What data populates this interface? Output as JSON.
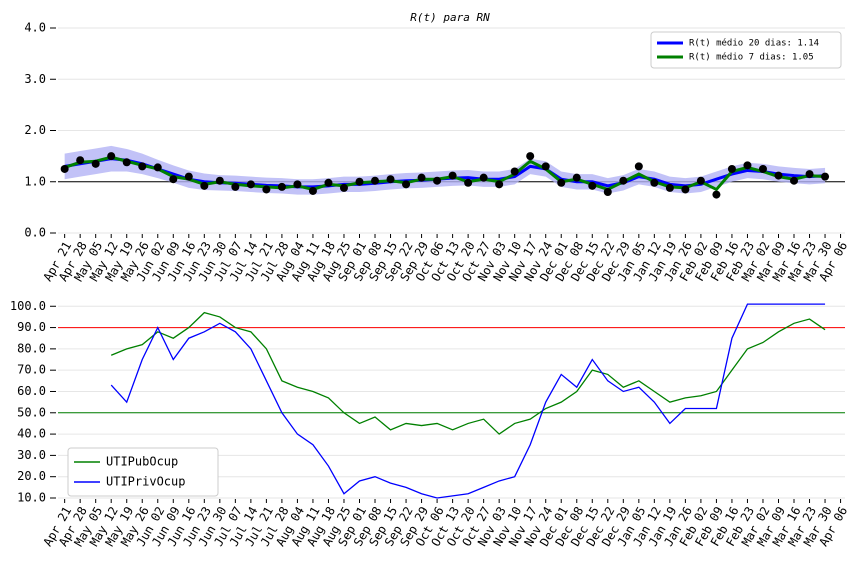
{
  "chart_data": [
    {
      "type": "line",
      "title": "R(t) para RN",
      "xlim": [
        -3,
        352
      ],
      "ylim": [
        0,
        4
      ],
      "yticks": [
        {
          "value": 0,
          "label": "0.0"
        },
        {
          "value": 1,
          "label": "1.0"
        },
        {
          "value": 2,
          "label": "2.0"
        },
        {
          "value": 3,
          "label": "3.0"
        },
        {
          "value": 4,
          "label": "4.0"
        }
      ],
      "xticks": [
        {
          "value": 0,
          "label": "Apr 21"
        },
        {
          "value": 7,
          "label": "Apr 28"
        },
        {
          "value": 14,
          "label": "May 05"
        },
        {
          "value": 21,
          "label": "May 12"
        },
        {
          "value": 28,
          "label": "May 19"
        },
        {
          "value": 35,
          "label": "May 26"
        },
        {
          "value": 42,
          "label": "Jun 02"
        },
        {
          "value": 49,
          "label": "Jun 09"
        },
        {
          "value": 56,
          "label": "Jun 16"
        },
        {
          "value": 63,
          "label": "Jun 23"
        },
        {
          "value": 70,
          "label": "Jun 30"
        },
        {
          "value": 77,
          "label": "Jul 07"
        },
        {
          "value": 84,
          "label": "Jul 14"
        },
        {
          "value": 91,
          "label": "Jul 21"
        },
        {
          "value": 98,
          "label": "Jul 28"
        },
        {
          "value": 105,
          "label": "Aug 04"
        },
        {
          "value": 112,
          "label": "Aug 11"
        },
        {
          "value": 119,
          "label": "Aug 18"
        },
        {
          "value": 126,
          "label": "Aug 25"
        },
        {
          "value": 133,
          "label": "Sep 01"
        },
        {
          "value": 140,
          "label": "Sep 08"
        },
        {
          "value": 147,
          "label": "Sep 15"
        },
        {
          "value": 154,
          "label": "Sep 22"
        },
        {
          "value": 161,
          "label": "Sep 29"
        },
        {
          "value": 168,
          "label": "Oct 06"
        },
        {
          "value": 175,
          "label": "Oct 13"
        },
        {
          "value": 182,
          "label": "Oct 20"
        },
        {
          "value": 189,
          "label": "Oct 27"
        },
        {
          "value": 196,
          "label": "Nov 03"
        },
        {
          "value": 203,
          "label": "Nov 10"
        },
        {
          "value": 210,
          "label": "Nov 17"
        },
        {
          "value": 217,
          "label": "Nov 24"
        },
        {
          "value": 224,
          "label": "Dec 01"
        },
        {
          "value": 231,
          "label": "Dec 08"
        },
        {
          "value": 238,
          "label": "Dec 15"
        },
        {
          "value": 245,
          "label": "Dec 22"
        },
        {
          "value": 252,
          "label": "Dec 29"
        },
        {
          "value": 259,
          "label": "Jan 05"
        },
        {
          "value": 266,
          "label": "Jan 12"
        },
        {
          "value": 273,
          "label": "Jan 19"
        },
        {
          "value": 280,
          "label": "Jan 26"
        },
        {
          "value": 287,
          "label": "Feb 02"
        },
        {
          "value": 294,
          "label": "Feb 09"
        },
        {
          "value": 301,
          "label": "Feb 16"
        },
        {
          "value": 308,
          "label": "Feb 23"
        },
        {
          "value": 315,
          "label": "Mar 02"
        },
        {
          "value": 322,
          "label": "Mar 09"
        },
        {
          "value": 329,
          "label": "Mar 16"
        },
        {
          "value": 336,
          "label": "Mar 23"
        },
        {
          "value": 343,
          "label": "Mar 30"
        },
        {
          "value": 350,
          "label": "Apr 06"
        }
      ],
      "grid": true,
      "legend": "upper right",
      "hlines": [
        {
          "value": 1,
          "color": "#000000"
        }
      ],
      "x": [
        0,
        7,
        14,
        21,
        28,
        35,
        42,
        49,
        56,
        63,
        70,
        77,
        84,
        91,
        98,
        105,
        112,
        119,
        126,
        133,
        140,
        147,
        154,
        161,
        168,
        175,
        182,
        189,
        196,
        203,
        210,
        217,
        224,
        231,
        238,
        245,
        252,
        259,
        266,
        273,
        280,
        287,
        294,
        301,
        308,
        315,
        322,
        329,
        336,
        343
      ],
      "band": {
        "color": "#b3b3f5",
        "low": [
          1.05,
          1.1,
          1.15,
          1.2,
          1.2,
          1.15,
          1.07,
          0.98,
          0.88,
          0.84,
          0.83,
          0.82,
          0.8,
          0.78,
          0.77,
          0.75,
          0.75,
          0.77,
          0.8,
          0.8,
          0.82,
          0.85,
          0.87,
          0.88,
          0.9,
          0.92,
          0.93,
          0.9,
          0.9,
          0.95,
          1.15,
          1.1,
          0.9,
          0.85,
          0.85,
          0.77,
          0.83,
          0.95,
          0.9,
          0.8,
          0.77,
          0.8,
          0.9,
          1.0,
          1.07,
          1.05,
          1.0,
          0.97,
          0.95,
          0.97
        ],
        "high": [
          1.55,
          1.6,
          1.65,
          1.7,
          1.64,
          1.55,
          1.43,
          1.32,
          1.22,
          1.16,
          1.13,
          1.12,
          1.1,
          1.08,
          1.07,
          1.05,
          1.05,
          1.07,
          1.1,
          1.1,
          1.12,
          1.15,
          1.17,
          1.18,
          1.2,
          1.22,
          1.23,
          1.2,
          1.2,
          1.25,
          1.45,
          1.4,
          1.2,
          1.15,
          1.15,
          1.07,
          1.13,
          1.25,
          1.2,
          1.1,
          1.07,
          1.1,
          1.2,
          1.3,
          1.37,
          1.35,
          1.3,
          1.27,
          1.25,
          1.27
        ]
      },
      "points": {
        "color": "#000000",
        "values": [
          1.25,
          1.42,
          1.35,
          1.5,
          1.38,
          1.3,
          1.28,
          1.05,
          1.1,
          0.92,
          1.02,
          0.9,
          0.95,
          0.85,
          0.9,
          0.95,
          0.82,
          0.98,
          0.88,
          1.0,
          1.02,
          1.05,
          0.95,
          1.08,
          1.02,
          1.12,
          0.98,
          1.08,
          0.95,
          1.2,
          1.5,
          1.3,
          0.98,
          1.08,
          0.92,
          0.8,
          1.02,
          1.3,
          0.98,
          0.88,
          0.85,
          1.02,
          0.75,
          1.25,
          1.32,
          1.25,
          1.12,
          1.02,
          1.15,
          1.1
        ]
      },
      "series": [
        {
          "name": "R(t) médio 20 dias: 1.14",
          "color": "#0000ff",
          "values": [
            1.3,
            1.35,
            1.4,
            1.45,
            1.42,
            1.35,
            1.25,
            1.15,
            1.05,
            1.0,
            0.98,
            0.97,
            0.95,
            0.93,
            0.92,
            0.9,
            0.9,
            0.92,
            0.95,
            0.95,
            0.97,
            1.0,
            1.02,
            1.03,
            1.05,
            1.07,
            1.08,
            1.05,
            1.05,
            1.1,
            1.3,
            1.25,
            1.05,
            1.0,
            1.0,
            0.92,
            0.98,
            1.1,
            1.05,
            0.95,
            0.92,
            0.95,
            1.05,
            1.15,
            1.22,
            1.2,
            1.15,
            1.12,
            1.1,
            1.12
          ]
        },
        {
          "name": "R(t) médio 7 dias: 1.05",
          "color": "#008000",
          "values": [
            1.28,
            1.38,
            1.4,
            1.48,
            1.4,
            1.32,
            1.25,
            1.1,
            1.05,
            0.95,
            1.0,
            0.95,
            0.92,
            0.9,
            0.88,
            0.92,
            0.85,
            0.95,
            0.92,
            0.98,
            1.0,
            1.02,
            0.98,
            1.05,
            1.05,
            1.1,
            1.0,
            1.05,
            1.0,
            1.15,
            1.4,
            1.25,
            1.0,
            1.05,
            0.95,
            0.85,
            1.0,
            1.15,
            1.0,
            0.9,
            0.88,
            1.0,
            0.85,
            1.2,
            1.28,
            1.2,
            1.1,
            1.05,
            1.12,
            1.1
          ]
        }
      ]
    },
    {
      "type": "line",
      "xlim": [
        -3,
        352
      ],
      "ylim": [
        10,
        102
      ],
      "yticks": [
        {
          "value": 10,
          "label": "10.0"
        },
        {
          "value": 20,
          "label": "20.0"
        },
        {
          "value": 30,
          "label": "30.0"
        },
        {
          "value": 40,
          "label": "40.0"
        },
        {
          "value": 50,
          "label": "50.0"
        },
        {
          "value": 60,
          "label": "60.0"
        },
        {
          "value": 70,
          "label": "70.0"
        },
        {
          "value": 80,
          "label": "80.0"
        },
        {
          "value": 90,
          "label": "90.0"
        },
        {
          "value": 100,
          "label": "100.0"
        }
      ],
      "xticks": [
        {
          "value": 0,
          "label": "Apr 21"
        },
        {
          "value": 7,
          "label": "Apr 28"
        },
        {
          "value": 14,
          "label": "May 05"
        },
        {
          "value": 21,
          "label": "May 12"
        },
        {
          "value": 28,
          "label": "May 19"
        },
        {
          "value": 35,
          "label": "May 26"
        },
        {
          "value": 42,
          "label": "Jun 02"
        },
        {
          "value": 49,
          "label": "Jun 09"
        },
        {
          "value": 56,
          "label": "Jun 16"
        },
        {
          "value": 63,
          "label": "Jun 23"
        },
        {
          "value": 70,
          "label": "Jun 30"
        },
        {
          "value": 77,
          "label": "Jul 07"
        },
        {
          "value": 84,
          "label": "Jul 14"
        },
        {
          "value": 91,
          "label": "Jul 21"
        },
        {
          "value": 98,
          "label": "Jul 28"
        },
        {
          "value": 105,
          "label": "Aug 04"
        },
        {
          "value": 112,
          "label": "Aug 11"
        },
        {
          "value": 119,
          "label": "Aug 18"
        },
        {
          "value": 126,
          "label": "Aug 25"
        },
        {
          "value": 133,
          "label": "Sep 01"
        },
        {
          "value": 140,
          "label": "Sep 08"
        },
        {
          "value": 147,
          "label": "Sep 15"
        },
        {
          "value": 154,
          "label": "Sep 22"
        },
        {
          "value": 161,
          "label": "Sep 29"
        },
        {
          "value": 168,
          "label": "Oct 06"
        },
        {
          "value": 175,
          "label": "Oct 13"
        },
        {
          "value": 182,
          "label": "Oct 20"
        },
        {
          "value": 189,
          "label": "Oct 27"
        },
        {
          "value": 196,
          "label": "Nov 03"
        },
        {
          "value": 203,
          "label": "Nov 10"
        },
        {
          "value": 210,
          "label": "Nov 17"
        },
        {
          "value": 217,
          "label": "Nov 24"
        },
        {
          "value": 224,
          "label": "Dec 01"
        },
        {
          "value": 231,
          "label": "Dec 08"
        },
        {
          "value": 238,
          "label": "Dec 15"
        },
        {
          "value": 245,
          "label": "Dec 22"
        },
        {
          "value": 252,
          "label": "Dec 29"
        },
        {
          "value": 259,
          "label": "Jan 05"
        },
        {
          "value": 266,
          "label": "Jan 12"
        },
        {
          "value": 273,
          "label": "Jan 19"
        },
        {
          "value": 280,
          "label": "Jan 26"
        },
        {
          "value": 287,
          "label": "Feb 02"
        },
        {
          "value": 294,
          "label": "Feb 09"
        },
        {
          "value": 301,
          "label": "Feb 16"
        },
        {
          "value": 308,
          "label": "Feb 23"
        },
        {
          "value": 315,
          "label": "Mar 02"
        },
        {
          "value": 322,
          "label": "Mar 09"
        },
        {
          "value": 329,
          "label": "Mar 16"
        },
        {
          "value": 336,
          "label": "Mar 23"
        },
        {
          "value": 343,
          "label": "Mar 30"
        },
        {
          "value": 350,
          "label": "Apr 06"
        }
      ],
      "grid": true,
      "legend": "lower left",
      "hlines": [
        {
          "value": 90,
          "color": "#ff0000"
        },
        {
          "value": 50,
          "color": "#008000"
        }
      ],
      "x": [
        21,
        28,
        35,
        42,
        49,
        56,
        63,
        70,
        77,
        84,
        91,
        98,
        105,
        112,
        119,
        126,
        133,
        140,
        147,
        154,
        161,
        168,
        175,
        182,
        189,
        196,
        203,
        210,
        217,
        224,
        231,
        238,
        245,
        252,
        259,
        266,
        273,
        280,
        287,
        294,
        301,
        308,
        315,
        322,
        329,
        336,
        343
      ],
      "series": [
        {
          "name": "UTIPubOcup",
          "color": "#008000",
          "values": [
            77,
            80,
            82,
            88,
            85,
            90,
            97,
            95,
            90,
            88,
            80,
            65,
            62,
            60,
            57,
            50,
            45,
            48,
            42,
            45,
            44,
            45,
            42,
            45,
            47,
            40,
            45,
            47,
            52,
            55,
            60,
            70,
            68,
            62,
            65,
            60,
            55,
            57,
            58,
            60,
            70,
            80,
            83,
            88,
            92,
            94,
            89
          ]
        },
        {
          "name": "UTIPrivOcup",
          "color": "#0000ff",
          "values": [
            63,
            55,
            75,
            90,
            75,
            85,
            88,
            92,
            88,
            80,
            65,
            50,
            40,
            35,
            25,
            12,
            18,
            20,
            17,
            15,
            12,
            10,
            11,
            12,
            15,
            18,
            20,
            35,
            55,
            68,
            62,
            75,
            65,
            60,
            62,
            55,
            45,
            52,
            52,
            52,
            85,
            101,
            101,
            101,
            101,
            101,
            101
          ]
        }
      ]
    }
  ]
}
